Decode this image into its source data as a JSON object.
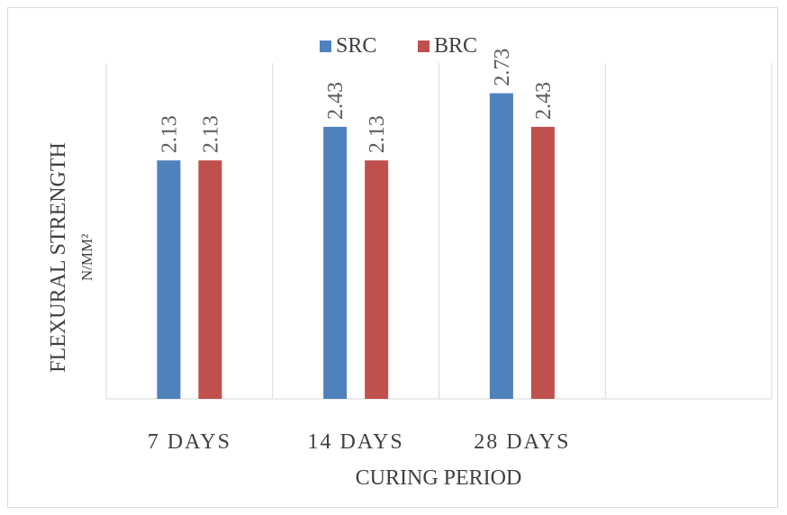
{
  "chart_data": {
    "type": "bar",
    "title": "",
    "categories": [
      "7 DAYS",
      "14 DAYS",
      "28 DAYS",
      ""
    ],
    "series": [
      {
        "name": "SRC",
        "color": "#4f81bd",
        "values": [
          2.13,
          2.43,
          2.73,
          null
        ]
      },
      {
        "name": "BRC",
        "color": "#c0504d",
        "values": [
          2.13,
          2.13,
          2.43,
          null
        ]
      }
    ],
    "xlabel": "CURING PERIOD",
    "ylabel_line1": "FLEXURAL STRENGTH",
    "ylabel_line2": "N/MM²",
    "ylim": [
      0,
      3.0
    ],
    "legend_position": "top-center",
    "grid": "vertical category dividers",
    "data_labels": true
  }
}
